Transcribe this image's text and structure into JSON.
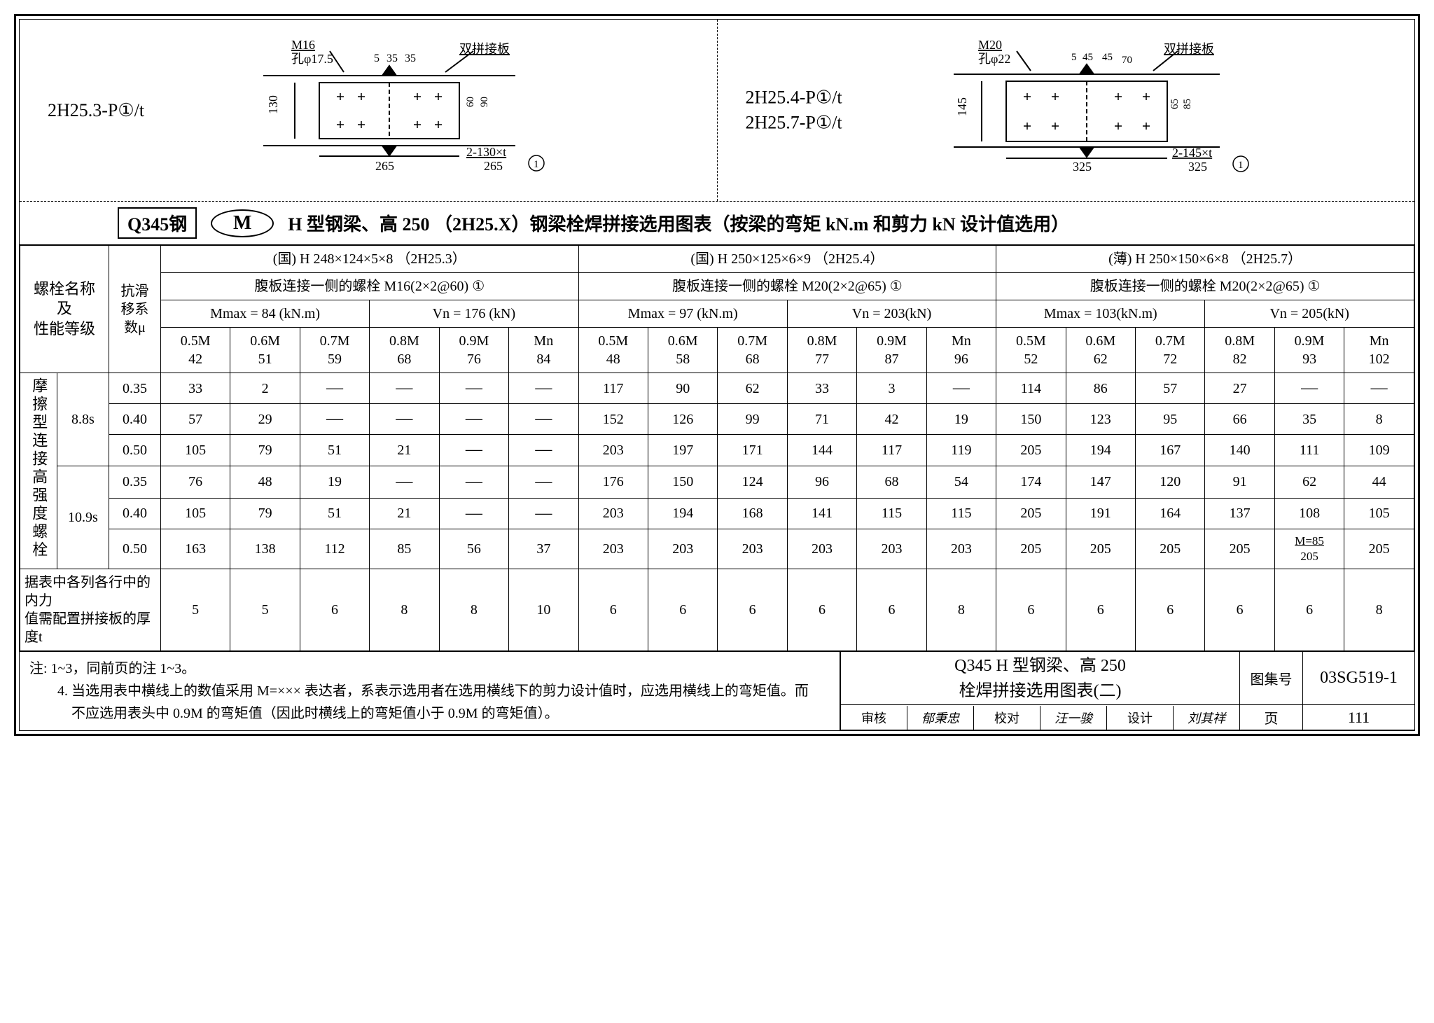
{
  "diagrams": {
    "left": {
      "label": "2H25.3-P①/t",
      "top_labels": {
        "bolt": "M16",
        "hole": "孔φ17.5",
        "d5": "5",
        "d35a": "35",
        "d35b": "35",
        "splice": "双拼接板"
      },
      "dims": {
        "h130": "130",
        "w265": "265",
        "frac_top": "2-130×t",
        "frac_bot": "265",
        "v60": "60",
        "v90": "90",
        "dim_small": "5"
      }
    },
    "right": {
      "label1": "2H25.4-P①/t",
      "label2": "2H25.7-P①/t",
      "top_labels": {
        "bolt": "M20",
        "hole": "孔φ22",
        "d5": "5",
        "d45a": "45",
        "d45b": "45",
        "d70": "70",
        "splice": "双拼接板"
      },
      "dims": {
        "h145": "145",
        "w325": "325",
        "frac_top": "2-145×t",
        "frac_bot": "325",
        "v65": "65",
        "v85": "85"
      }
    }
  },
  "title_row": {
    "steel": "Q345钢",
    "mark": "M",
    "text": "H 型钢梁、高 250 （2H25.X）钢梁栓焊拼接选用图表（按梁的弯矩 kN.m 和剪力 kN 设计值选用）"
  },
  "row_headers": {
    "bolt_name": "螺栓名称\n及\n性能等级",
    "slip_coef": "抗滑\n移系\n数μ",
    "friction_bolt": "摩擦型连接高强度螺栓",
    "grade88": "8.8s",
    "grade109": "10.9s",
    "thickness_note": "据表中各列各行中的内力\n值需配置拼接板的厚度t"
  },
  "sections": [
    {
      "head": "(国)  H 248×124×5×8 （2H25.3）",
      "bolt": "腹板连接一侧的螺栓  M16(2×2@60)  ①",
      "mv": {
        "m": "Mmax = 84 (kN.m)",
        "v": "Vn = 176 (kN)"
      },
      "cols": [
        [
          "0.5M",
          "42"
        ],
        [
          "0.6M",
          "51"
        ],
        [
          "0.7M",
          "59"
        ],
        [
          "0.8M",
          "68"
        ],
        [
          "0.9M",
          "76"
        ],
        [
          "Mn",
          "84"
        ]
      ]
    },
    {
      "head": "(国)  H 250×125×6×9 （2H25.4）",
      "bolt": "腹板连接一侧的螺栓  M20(2×2@65)  ①",
      "mv": {
        "m": "Mmax = 97 (kN.m)",
        "v": "Vn = 203(kN)"
      },
      "cols": [
        [
          "0.5M",
          "48"
        ],
        [
          "0.6M",
          "58"
        ],
        [
          "0.7M",
          "68"
        ],
        [
          "0.8M",
          "77"
        ],
        [
          "0.9M",
          "87"
        ],
        [
          "Mn",
          "96"
        ]
      ]
    },
    {
      "head": "(薄)  H 250×150×6×8 （2H25.7）",
      "bolt": "腹板连接一侧的螺栓  M20(2×2@65)  ①",
      "mv": {
        "m": "Mmax = 103(kN.m)",
        "v": "Vn = 205(kN)"
      },
      "cols": [
        [
          "0.5M",
          "52"
        ],
        [
          "0.6M",
          "62"
        ],
        [
          "0.7M",
          "72"
        ],
        [
          "0.8M",
          "82"
        ],
        [
          "0.9M",
          "93"
        ],
        [
          "Mn",
          "102"
        ]
      ]
    }
  ],
  "mu_values": [
    "0.35",
    "0.40",
    "0.50",
    "0.35",
    "0.40",
    "0.50"
  ],
  "data": [
    [
      "33",
      "2",
      "—",
      "—",
      "—",
      "—",
      "117",
      "90",
      "62",
      "33",
      "3",
      "—",
      "114",
      "86",
      "57",
      "27",
      "—",
      "—"
    ],
    [
      "57",
      "29",
      "—",
      "—",
      "—",
      "—",
      "152",
      "126",
      "99",
      "71",
      "42",
      "19",
      "150",
      "123",
      "95",
      "66",
      "35",
      "8"
    ],
    [
      "105",
      "79",
      "51",
      "21",
      "—",
      "—",
      "203",
      "197",
      "171",
      "144",
      "117",
      "119",
      "205",
      "194",
      "167",
      "140",
      "111",
      "109"
    ],
    [
      "76",
      "48",
      "19",
      "—",
      "—",
      "—",
      "176",
      "150",
      "124",
      "96",
      "68",
      "54",
      "174",
      "147",
      "120",
      "91",
      "62",
      "44"
    ],
    [
      "105",
      "79",
      "51",
      "21",
      "—",
      "—",
      "203",
      "194",
      "168",
      "141",
      "115",
      "115",
      "205",
      "191",
      "164",
      "137",
      "108",
      "105"
    ],
    [
      "163",
      "138",
      "112",
      "85",
      "56",
      "37",
      "203",
      "203",
      "203",
      "203",
      "203",
      "203",
      "205",
      "205",
      "205",
      "205",
      "M=85/205",
      "205"
    ]
  ],
  "thickness": [
    "5",
    "5",
    "6",
    "8",
    "8",
    "10",
    "6",
    "6",
    "6",
    "6",
    "6",
    "8",
    "6",
    "6",
    "6",
    "6",
    "6",
    "8"
  ],
  "notes": {
    "l1": "注: 1~3，同前页的注 1~3。",
    "l2": "4. 当选用表中横线上的数值采用 M=××× 表达者，系表示选用者在选用横线下的剪力设计值时，应选用横线上的弯矩值。而",
    "l3": "不应选用表头中 0.9M 的弯矩值（因此时横线上的弯矩值小于 0.9M 的弯矩值）。"
  },
  "titleblock": {
    "title1": "Q345 H 型钢梁、高 250",
    "title2": "栓焊拼接选用图表(二)",
    "tuji": "图集号",
    "tuji_no": "03SG519-1",
    "page_lbl": "页",
    "page_no": "111",
    "sig": {
      "sh": "审核",
      "shn": "郁秉忠",
      "jd": "校对",
      "jdn": "汪一骏",
      "sj": "设计",
      "sjn": "刘其祥"
    }
  }
}
